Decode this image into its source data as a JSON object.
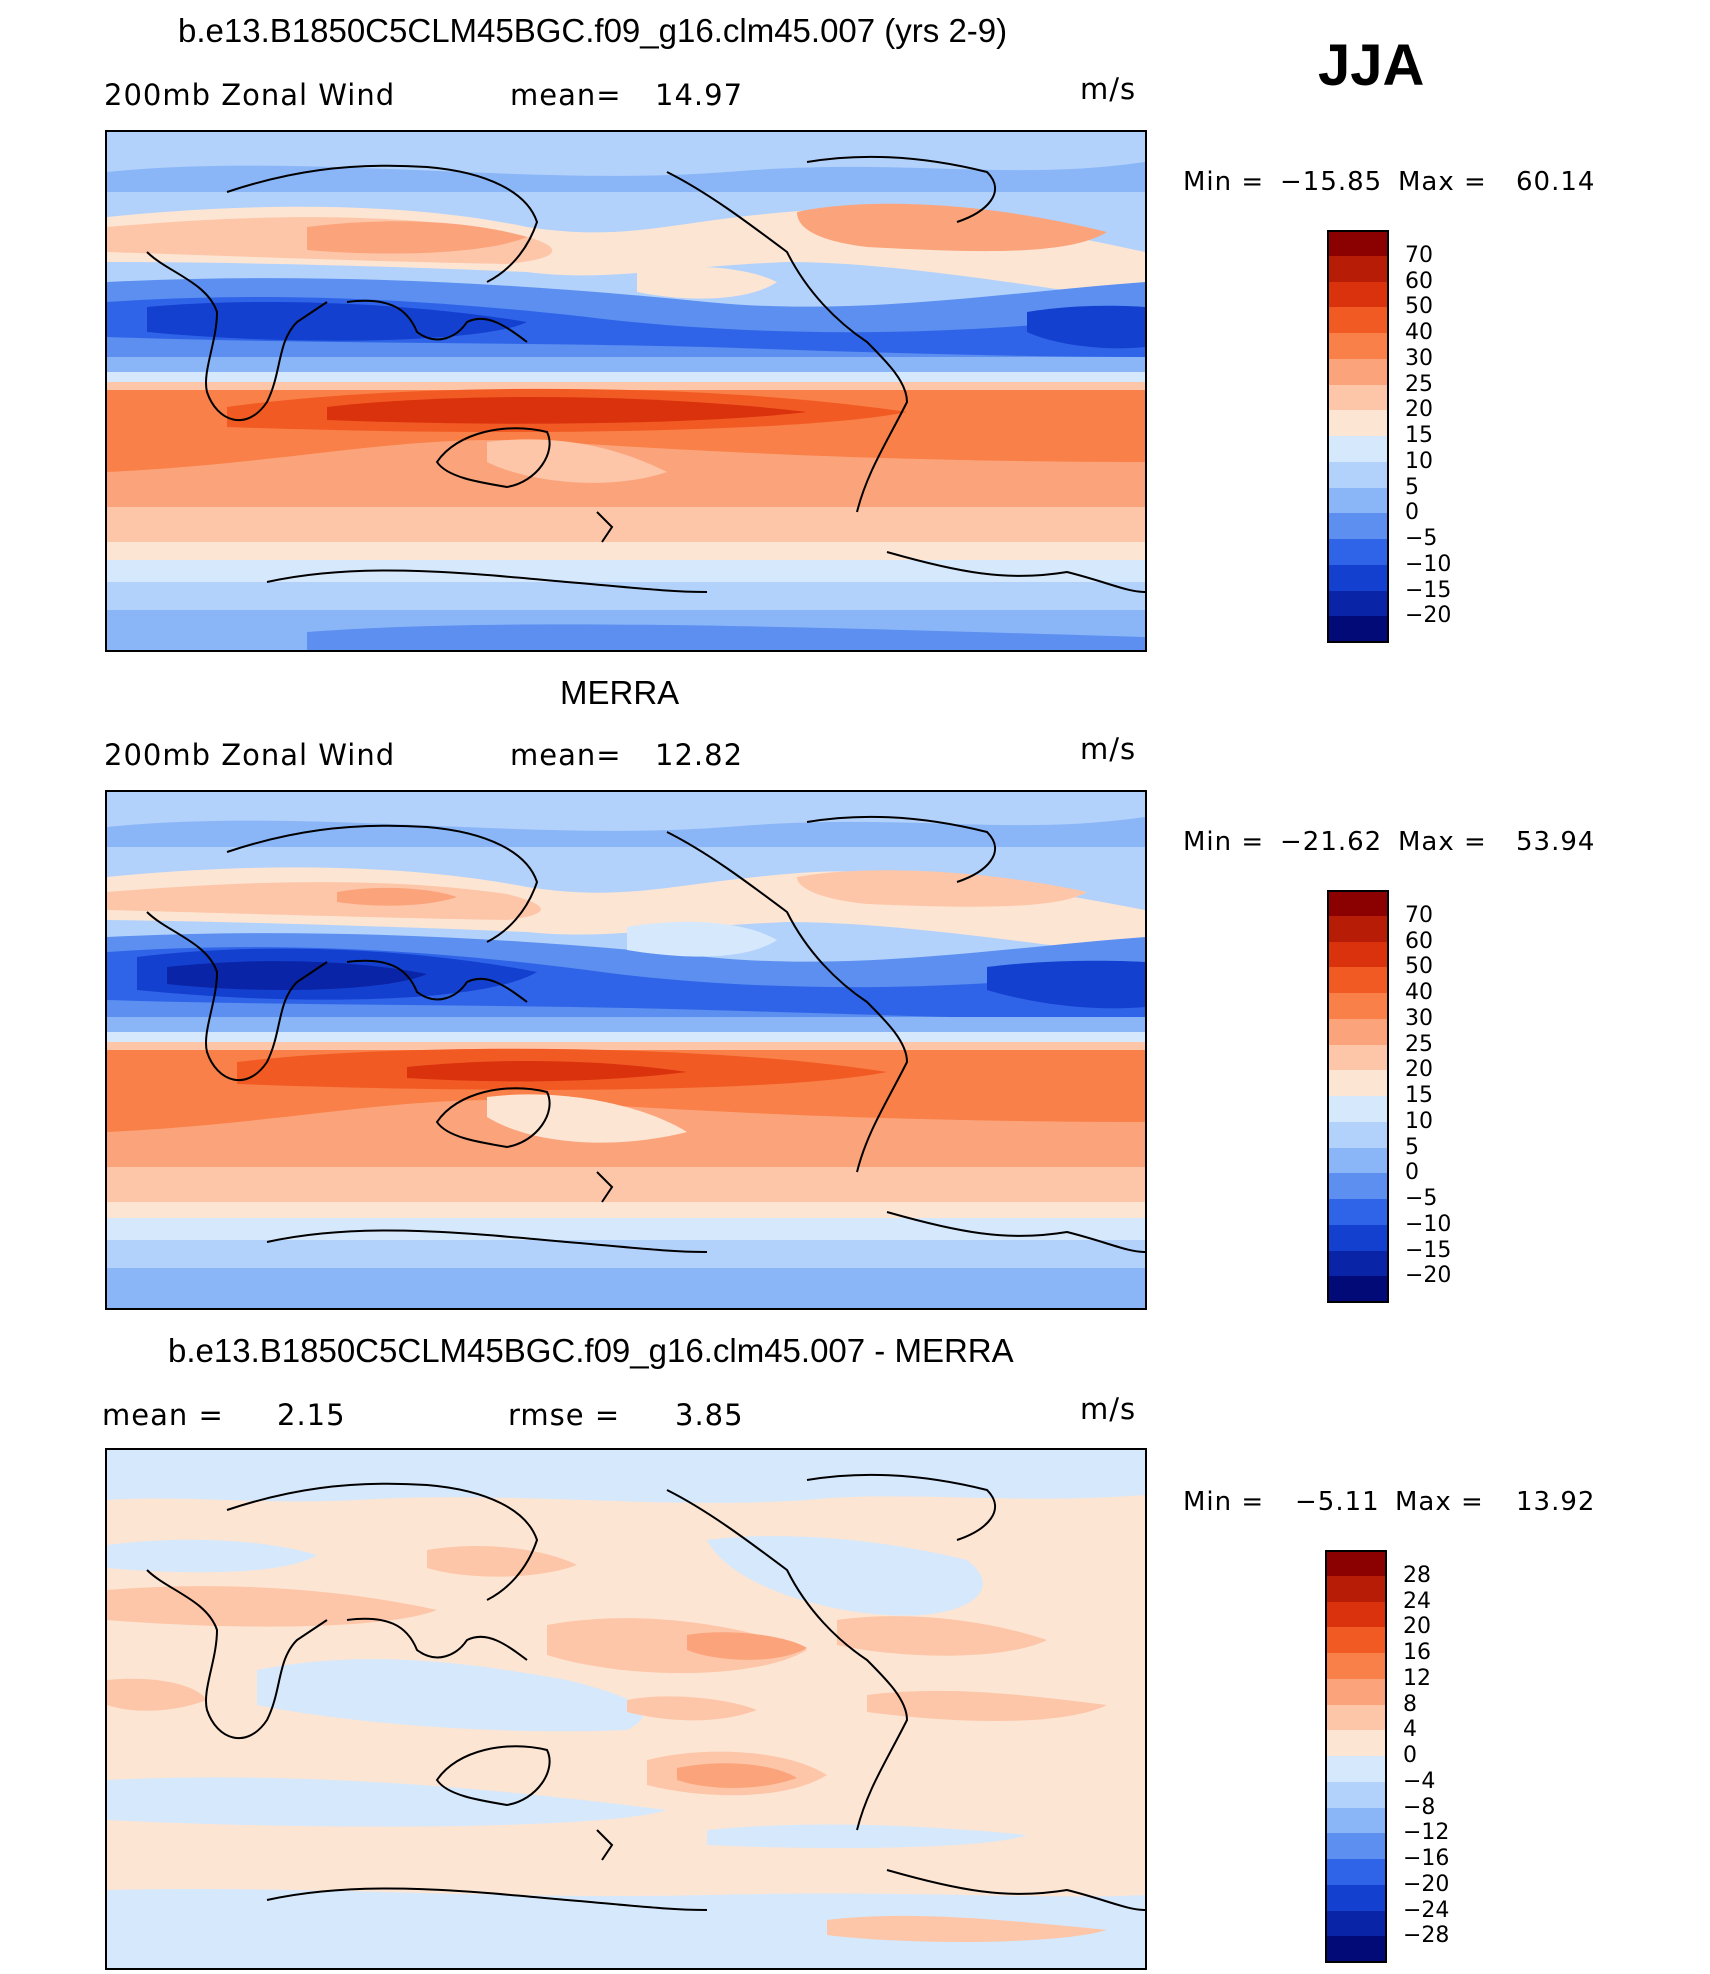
{
  "season": "JJA",
  "chart_data": [
    {
      "type": "heatmap",
      "title": "b.e13.B1850C5CLM45BGC.f09_g16.clm45.007 (yrs 2-9)",
      "variable": "200mb Zonal Wind",
      "stat_label": "mean=",
      "stat_value": "14.97",
      "units": "m/s",
      "min_label": "Min =",
      "min_value": "−15.85",
      "max_label": "Max =",
      "max_value": "60.14",
      "colorbar_levels": [
        "70",
        "60",
        "50",
        "40",
        "30",
        "25",
        "20",
        "15",
        "10",
        "5",
        "0",
        "−5",
        "−10",
        "−15",
        "−20"
      ],
      "colorbar_colors": [
        "#8b0000",
        "#b71c06",
        "#d9320d",
        "#f25a24",
        "#f98048",
        "#fba47c",
        "#fdc6a8",
        "#fde5d4",
        "#d6e8fb",
        "#b3d2fb",
        "#8ab6f8",
        "#5c8ff0",
        "#2f64e8",
        "#1440d0",
        "#0a24a8",
        "#020a78"
      ],
      "field_colors": {
        "strong_jet": "#d9320d",
        "jet": "#f25a24",
        "moderate": "#f98048",
        "weak": "#fba47c",
        "light": "#fdc6a8",
        "pale": "#fde5d4",
        "calm": "#d6e8fb",
        "light_east": "#b3d2fb",
        "east": "#8ab6f8",
        "strong_east": "#5c8ff0",
        "very_strong_east": "#2f64e8",
        "extreme_east": "#1440d0",
        "deepest": "#0a24a8"
      }
    },
    {
      "type": "heatmap",
      "title": "MERRA",
      "variable": "200mb Zonal Wind",
      "stat_label": "mean=",
      "stat_value": "12.82",
      "units": "m/s",
      "min_label": "Min =",
      "min_value": "−21.62",
      "max_label": "Max =",
      "max_value": "53.94",
      "colorbar_levels": [
        "70",
        "60",
        "50",
        "40",
        "30",
        "25",
        "20",
        "15",
        "10",
        "5",
        "0",
        "−5",
        "−10",
        "−15",
        "−20"
      ],
      "colorbar_colors": [
        "#8b0000",
        "#b71c06",
        "#d9320d",
        "#f25a24",
        "#f98048",
        "#fba47c",
        "#fdc6a8",
        "#fde5d4",
        "#d6e8fb",
        "#b3d2fb",
        "#8ab6f8",
        "#5c8ff0",
        "#2f64e8",
        "#1440d0",
        "#0a24a8",
        "#020a78"
      ]
    },
    {
      "type": "heatmap",
      "title": "b.e13.B1850C5CLM45BGC.f09_g16.clm45.007 - MERRA",
      "mean_label": "mean =",
      "mean_value": "2.15",
      "rmse_label": "rmse =",
      "rmse_value": "3.85",
      "units": "m/s",
      "min_label": "Min =",
      "min_value": "−5.11",
      "max_label": "Max =",
      "max_value": "13.92",
      "colorbar_levels": [
        "28",
        "24",
        "20",
        "16",
        "12",
        "8",
        "4",
        "0",
        "−4",
        "−8",
        "−12",
        "−16",
        "−20",
        "−24",
        "−28"
      ],
      "colorbar_colors": [
        "#8b0000",
        "#b71c06",
        "#d9320d",
        "#f25a24",
        "#f98048",
        "#fba47c",
        "#fdc6a8",
        "#fde5d4",
        "#d6e8fb",
        "#b3d2fb",
        "#8ab6f8",
        "#5c8ff0",
        "#2f64e8",
        "#1440d0",
        "#0a24a8",
        "#020a78"
      ]
    }
  ]
}
